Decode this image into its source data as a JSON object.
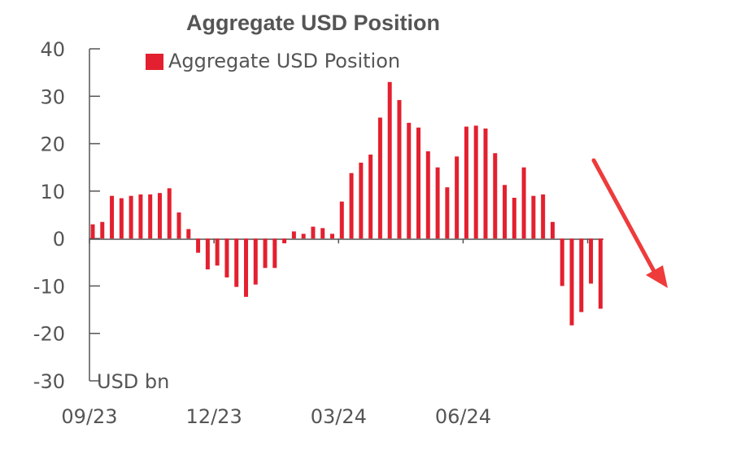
{
  "chart_data": {
    "type": "bar",
    "title": "Aggregate USD Position",
    "ylabel": "USD bn",
    "xlabel": "",
    "ylim": [
      -30,
      40
    ],
    "yticks": [
      40,
      30,
      20,
      10,
      0,
      -10,
      -20,
      -30
    ],
    "xtick_labels": [
      "09/23",
      "12/23",
      "03/24",
      "06/24"
    ],
    "legend": "top-left",
    "grid": false,
    "color": "#e3202f",
    "series": [
      {
        "name": "Aggregate USD Position",
        "values": [
          3,
          3.5,
          9,
          8.5,
          9,
          9.3,
          9.3,
          9.6,
          10.6,
          5.5,
          2,
          -3,
          -6.5,
          -5.7,
          -8.2,
          -10.2,
          -12.3,
          -9.7,
          -6.2,
          -6.2,
          -1,
          1.5,
          1,
          2.5,
          2.2,
          1,
          7.8,
          13.8,
          16,
          17.7,
          25.5,
          33,
          29.2,
          24.4,
          23.4,
          18.4,
          15,
          10.8,
          17.3,
          23.6,
          23.8,
          23.2,
          18,
          11.3,
          8.6,
          15,
          9,
          9.3,
          3.5,
          -10,
          -18.3,
          -15.5,
          -9.5,
          -14.8
        ]
      }
    ],
    "annotation": "downward-arrow"
  }
}
